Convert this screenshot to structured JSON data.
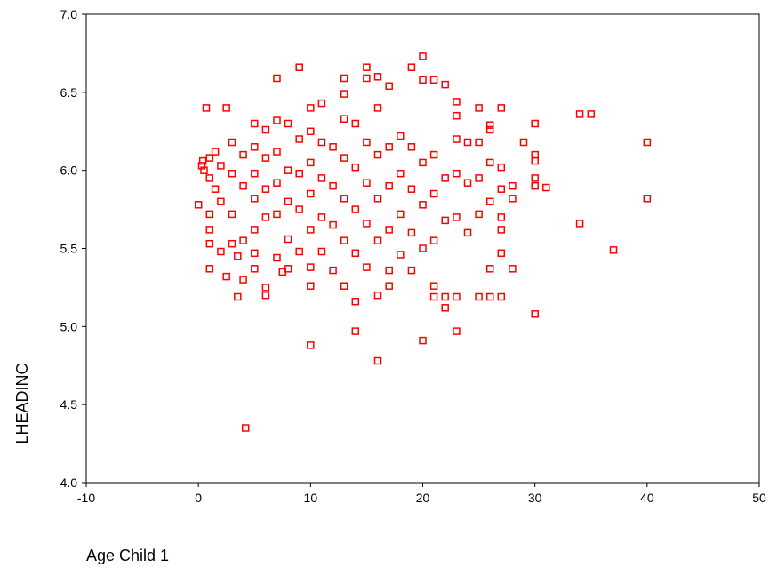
{
  "chart_data": {
    "type": "scatter",
    "xlabel": "Age Child 1",
    "ylabel": "LHEADINC",
    "xlim": [
      -10,
      50
    ],
    "ylim": [
      4.0,
      7.0
    ],
    "x_ticks": [
      "-10",
      "0",
      "10",
      "20",
      "30",
      "40",
      "50"
    ],
    "y_ticks": [
      "4.0",
      "4.5",
      "5.0",
      "5.5",
      "6.0",
      "6.5",
      "7.0"
    ],
    "grid": false,
    "marker": "hollow-square",
    "marker_color": "#ff0000",
    "points": [
      [
        0,
        5.78
      ],
      [
        0.3,
        6.03
      ],
      [
        0.4,
        6.06
      ],
      [
        0.5,
        6.0
      ],
      [
        0.7,
        6.4
      ],
      [
        1,
        6.08
      ],
      [
        1,
        5.95
      ],
      [
        1,
        5.72
      ],
      [
        1,
        5.62
      ],
      [
        1,
        5.53
      ],
      [
        1,
        5.37
      ],
      [
        1.5,
        6.12
      ],
      [
        1.5,
        5.88
      ],
      [
        2,
        6.03
      ],
      [
        2,
        5.8
      ],
      [
        2,
        5.48
      ],
      [
        2.5,
        6.4
      ],
      [
        2.5,
        5.32
      ],
      [
        3,
        6.18
      ],
      [
        3,
        5.98
      ],
      [
        3,
        5.72
      ],
      [
        3,
        5.53
      ],
      [
        3.5,
        5.19
      ],
      [
        3.5,
        5.45
      ],
      [
        4,
        6.1
      ],
      [
        4,
        5.9
      ],
      [
        4,
        5.55
      ],
      [
        4,
        5.3
      ],
      [
        4.2,
        4.35
      ],
      [
        5,
        6.3
      ],
      [
        5,
        6.15
      ],
      [
        5,
        5.98
      ],
      [
        5,
        5.82
      ],
      [
        5,
        5.62
      ],
      [
        5,
        5.47
      ],
      [
        5,
        5.37
      ],
      [
        6,
        6.26
      ],
      [
        6,
        6.08
      ],
      [
        6,
        5.88
      ],
      [
        6,
        5.7
      ],
      [
        6,
        5.25
      ],
      [
        6,
        5.2
      ],
      [
        7,
        6.59
      ],
      [
        7,
        6.32
      ],
      [
        7,
        6.12
      ],
      [
        7,
        5.92
      ],
      [
        7,
        5.72
      ],
      [
        7,
        5.44
      ],
      [
        7.5,
        5.35
      ],
      [
        8,
        6.3
      ],
      [
        8,
        6.0
      ],
      [
        8,
        5.8
      ],
      [
        8,
        5.56
      ],
      [
        8,
        5.37
      ],
      [
        9,
        6.66
      ],
      [
        9,
        6.2
      ],
      [
        9,
        5.98
      ],
      [
        9,
        5.75
      ],
      [
        9,
        5.48
      ],
      [
        10,
        6.4
      ],
      [
        10,
        6.25
      ],
      [
        10,
        6.05
      ],
      [
        10,
        5.85
      ],
      [
        10,
        5.62
      ],
      [
        10,
        5.38
      ],
      [
        10,
        5.26
      ],
      [
        10,
        4.88
      ],
      [
        11,
        6.43
      ],
      [
        11,
        6.18
      ],
      [
        11,
        5.95
      ],
      [
        11,
        5.7
      ],
      [
        11,
        5.48
      ],
      [
        12,
        6.15
      ],
      [
        12,
        5.9
      ],
      [
        12,
        5.65
      ],
      [
        12,
        5.36
      ],
      [
        13,
        6.59
      ],
      [
        13,
        6.49
      ],
      [
        13,
        6.33
      ],
      [
        13,
        6.08
      ],
      [
        13,
        5.82
      ],
      [
        13,
        5.55
      ],
      [
        13,
        5.26
      ],
      [
        14,
        6.3
      ],
      [
        14,
        6.02
      ],
      [
        14,
        5.75
      ],
      [
        14,
        5.47
      ],
      [
        14,
        5.16
      ],
      [
        14,
        4.97
      ],
      [
        15,
        6.66
      ],
      [
        15,
        6.59
      ],
      [
        15,
        6.18
      ],
      [
        15,
        5.92
      ],
      [
        15,
        5.66
      ],
      [
        15,
        5.38
      ],
      [
        16,
        6.6
      ],
      [
        16,
        6.4
      ],
      [
        16,
        6.1
      ],
      [
        16,
        5.82
      ],
      [
        16,
        5.55
      ],
      [
        16,
        5.2
      ],
      [
        16,
        4.78
      ],
      [
        17,
        6.54
      ],
      [
        17,
        6.15
      ],
      [
        17,
        5.9
      ],
      [
        17,
        5.62
      ],
      [
        17,
        5.36
      ],
      [
        17,
        5.26
      ],
      [
        18,
        6.22
      ],
      [
        18,
        5.98
      ],
      [
        18,
        5.72
      ],
      [
        18,
        5.46
      ],
      [
        19,
        6.66
      ],
      [
        19,
        6.15
      ],
      [
        19,
        5.88
      ],
      [
        19,
        5.6
      ],
      [
        19,
        5.36
      ],
      [
        20,
        6.73
      ],
      [
        20,
        6.58
      ],
      [
        20,
        6.05
      ],
      [
        20,
        5.78
      ],
      [
        20,
        5.5
      ],
      [
        20,
        4.91
      ],
      [
        21,
        6.58
      ],
      [
        21,
        6.1
      ],
      [
        21,
        5.85
      ],
      [
        21,
        5.55
      ],
      [
        21,
        5.26
      ],
      [
        21,
        5.19
      ],
      [
        22,
        6.55
      ],
      [
        22,
        5.95
      ],
      [
        22,
        5.68
      ],
      [
        22,
        5.19
      ],
      [
        22,
        5.12
      ],
      [
        23,
        6.44
      ],
      [
        23,
        6.35
      ],
      [
        23,
        6.2
      ],
      [
        23,
        5.98
      ],
      [
        23,
        5.7
      ],
      [
        23,
        5.19
      ],
      [
        23,
        4.97
      ],
      [
        24,
        6.18
      ],
      [
        24,
        5.92
      ],
      [
        24,
        5.6
      ],
      [
        25,
        6.4
      ],
      [
        25,
        6.18
      ],
      [
        25,
        5.95
      ],
      [
        25,
        5.72
      ],
      [
        25,
        5.19
      ],
      [
        26,
        6.29
      ],
      [
        26,
        6.26
      ],
      [
        26,
        6.05
      ],
      [
        26,
        5.8
      ],
      [
        26,
        5.37
      ],
      [
        26,
        5.19
      ],
      [
        27,
        6.4
      ],
      [
        27,
        6.02
      ],
      [
        27,
        5.88
      ],
      [
        27,
        5.7
      ],
      [
        27,
        5.62
      ],
      [
        27,
        5.19
      ],
      [
        27,
        5.47
      ],
      [
        28,
        5.9
      ],
      [
        28,
        5.82
      ],
      [
        28,
        5.37
      ],
      [
        29,
        6.18
      ],
      [
        30,
        6.3
      ],
      [
        30,
        6.1
      ],
      [
        30,
        6.06
      ],
      [
        30,
        5.95
      ],
      [
        30,
        5.9
      ],
      [
        30,
        5.08
      ],
      [
        31,
        5.89
      ],
      [
        34,
        6.36
      ],
      [
        34,
        5.66
      ],
      [
        35,
        6.36
      ],
      [
        37,
        5.49
      ],
      [
        40,
        6.18
      ],
      [
        40,
        5.82
      ]
    ]
  }
}
